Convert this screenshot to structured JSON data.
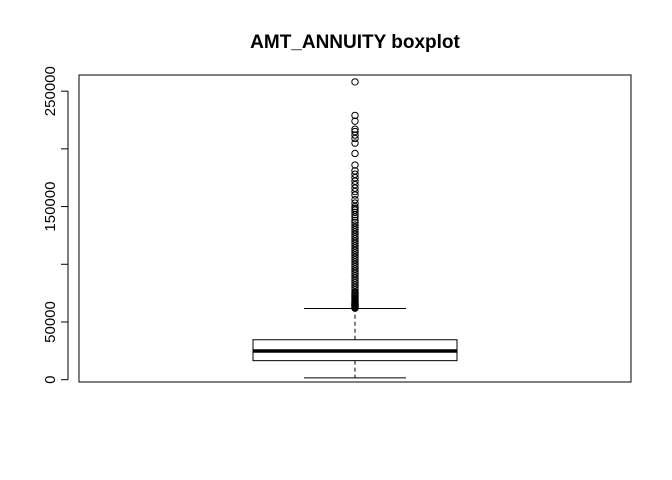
{
  "chart_data": {
    "type": "boxplot",
    "title": "AMT_ANNUITY boxplot",
    "xlabel": "",
    "ylabel": "",
    "ylim": [
      -2000,
      264000
    ],
    "yticks": [
      0,
      50000,
      100000,
      150000,
      200000,
      250000
    ],
    "ytick_labels": [
      "0",
      "50000",
      "",
      "150000",
      "",
      "250000"
    ],
    "grid": false,
    "legend": "none",
    "boxes": [
      {
        "whisker_low": 1600,
        "q1": 16500,
        "median": 24900,
        "q3": 34600,
        "whisker_high": 61700
      }
    ],
    "outliers": [
      62000,
      62500,
      63000,
      63500,
      64000,
      64500,
      65000,
      65500,
      66000,
      66500,
      67000,
      68000,
      69000,
      70000,
      71000,
      72000,
      73000,
      74000,
      75000,
      76000,
      78000,
      80000,
      82000,
      84000,
      86000,
      88000,
      90000,
      92000,
      94000,
      96000,
      98000,
      100000,
      102000,
      104000,
      106000,
      108000,
      110000,
      112000,
      114000,
      116000,
      118000,
      120000,
      122000,
      124000,
      126000,
      128000,
      130000,
      132000,
      134000,
      136000,
      138000,
      141000,
      143000,
      145000,
      147000,
      148500,
      150000,
      153000,
      156000,
      160000,
      163000,
      166000,
      169000,
      172000,
      175000,
      178000,
      181000,
      186000,
      196000,
      205000,
      209000,
      212000,
      215000,
      217000,
      224000,
      229000,
      258000
    ]
  }
}
